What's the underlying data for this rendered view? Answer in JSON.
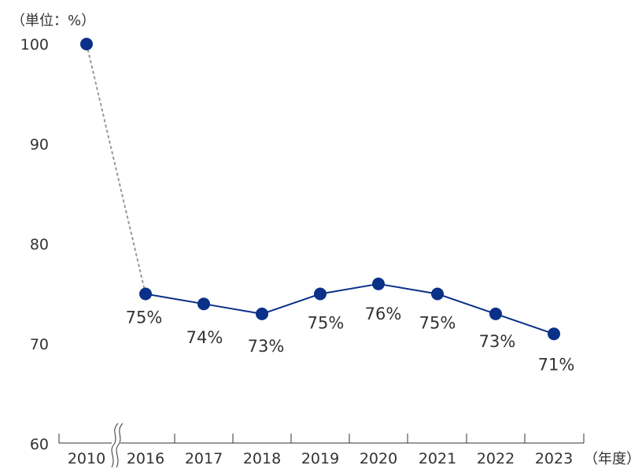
{
  "chart_data": {
    "type": "line",
    "y_unit_label": "（単位：%）",
    "x_unit_label": "（年度）",
    "categories": [
      "2010",
      "2016",
      "2017",
      "2018",
      "2019",
      "2020",
      "2021",
      "2022",
      "2023"
    ],
    "values": [
      100,
      75,
      74,
      73,
      75,
      76,
      75,
      73,
      71
    ],
    "data_labels": [
      "",
      "75%",
      "74%",
      "73%",
      "75%",
      "76%",
      "75%",
      "73%",
      "71%"
    ],
    "ylim": [
      60,
      100
    ],
    "yticks": [
      100,
      90,
      80,
      70,
      60
    ],
    "axis_break_between": [
      "2010",
      "2016"
    ],
    "segment_styles": [
      "dashed",
      "solid",
      "solid",
      "solid",
      "solid",
      "solid",
      "solid",
      "solid"
    ],
    "colors": {
      "series": "#0a3088",
      "dashed_segment": "#999999",
      "axis": "#333333",
      "text": "#333333"
    },
    "grid": false
  }
}
